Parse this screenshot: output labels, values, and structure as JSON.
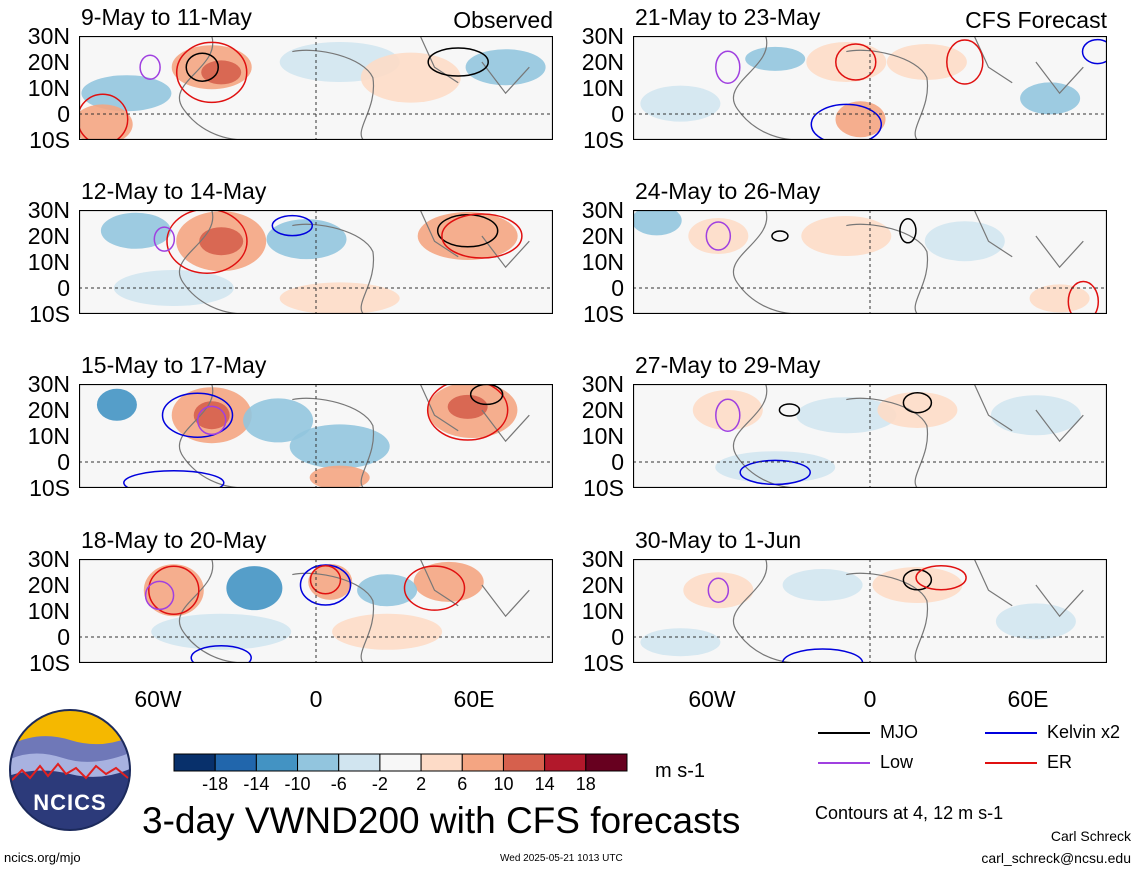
{
  "chart_data": {
    "type": "heatmap",
    "title": "3-day VWND200 with CFS forecasts",
    "units": "m s-1",
    "contour_note": "Contours at 4, 12 m s-1",
    "lat_ticks": [
      "30N",
      "20N",
      "10N",
      "0",
      "10S"
    ],
    "lon_ticks": [
      "60W",
      "0",
      "60E"
    ],
    "columns": [
      {
        "tag": "Observed",
        "panels": [
          "9-May to 11-May",
          "12-May to 14-May",
          "15-May to 17-May",
          "18-May to 20-May"
        ]
      },
      {
        "tag": "CFS Forecast",
        "panels": [
          "21-May to 23-May",
          "24-May to 26-May",
          "27-May to 29-May",
          "30-May to 1-Jun"
        ]
      }
    ],
    "colorbar": {
      "labels": [
        "-18",
        "-14",
        "-10",
        "-6",
        "-2",
        "2",
        "6",
        "10",
        "14",
        "18"
      ],
      "colors": [
        "#08306b",
        "#2166ac",
        "#4393c3",
        "#92c5de",
        "#d1e5f0",
        "#f7f7f7",
        "#fddbc7",
        "#f4a582",
        "#d6604d",
        "#b2182b",
        "#67001f"
      ]
    },
    "legend": [
      {
        "label": "MJO",
        "color": "#000000"
      },
      {
        "label": "Kelvin x2",
        "color": "#0000dd"
      },
      {
        "label": "Low",
        "color": "#a040e0"
      },
      {
        "label": "ER",
        "color": "#e01010"
      }
    ]
  },
  "logo": {
    "text": "NCICS"
  },
  "footer": {
    "site": "ncics.org/mjo",
    "timestamp": "Wed 2025-05-21 1013 UTC",
    "author": "Carl Schreck",
    "email": "carl_schreck@ncsu.edu"
  }
}
